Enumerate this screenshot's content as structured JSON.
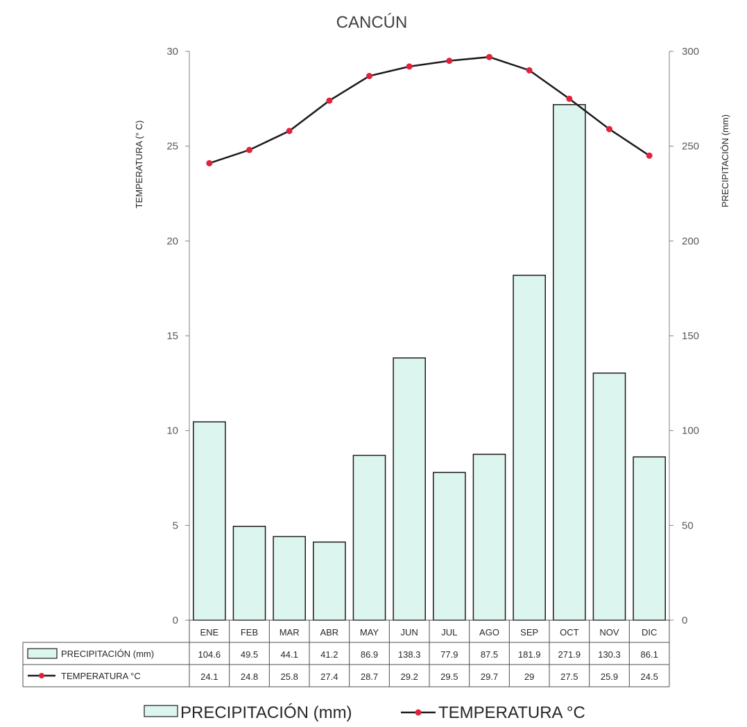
{
  "chart_data": {
    "type": "bar",
    "title": "CANCÚN",
    "categories": [
      "ENE",
      "FEB",
      "MAR",
      "ABR",
      "MAY",
      "JUN",
      "JUL",
      "AGO",
      "SEP",
      "OCT",
      "NOV",
      "DIC"
    ],
    "series": [
      {
        "name": "PRECIPITACIÓN (mm)",
        "type": "bar",
        "axis": "right",
        "table_label": "PRECIPITACIÓN (mm)",
        "values": [
          104.6,
          49.5,
          44.1,
          41.2,
          86.9,
          138.3,
          77.9,
          87.5,
          181.9,
          271.9,
          130.3,
          86.1
        ],
        "color": "#ddf5ef",
        "border": "#1a1a1a"
      },
      {
        "name": "TEMPERATURA °C",
        "type": "line",
        "axis": "left",
        "table_label": "TEMPERATURA °C",
        "values": [
          24.1,
          24.8,
          25.8,
          27.4,
          28.7,
          29.2,
          29.5,
          29.7,
          29,
          27.5,
          25.9,
          24.5
        ],
        "line_color": "#1a1a1a",
        "marker_color": "#e0223a"
      }
    ],
    "ylabel_left": "TEMPERATURA  (° C)",
    "ylabel_right": "PRECIPITACIÓN  (mm)",
    "ylim_left": [
      0,
      30
    ],
    "ylim_right": [
      0,
      300
    ],
    "yticks_left": [
      0,
      5,
      10,
      15,
      20,
      25,
      30
    ],
    "yticks_right": [
      0,
      50,
      100,
      150,
      200,
      250,
      300
    ],
    "grid": false,
    "legend": "bottom",
    "data_table": true
  }
}
